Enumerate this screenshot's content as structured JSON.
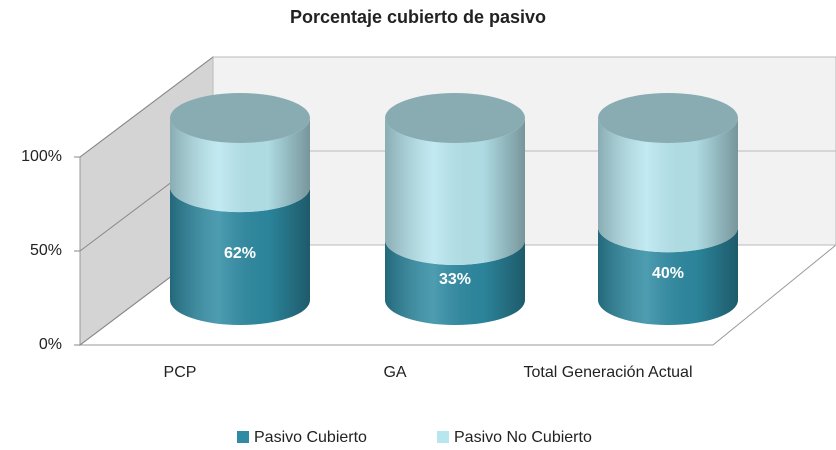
{
  "chart_data": {
    "type": "cylinder_stacked",
    "title": "Porcentaje cubierto de pasivo",
    "categories": [
      "PCP",
      "GA",
      "Total Generación Actual"
    ],
    "series": [
      {
        "name": "Pasivo Cubierto",
        "color": "#2e8ba3",
        "values": [
          62,
          33,
          40
        ],
        "value_labels": [
          "62%",
          "33%",
          "40%"
        ]
      },
      {
        "name": "Pasivo No Cubierto",
        "color": "#b7e6ef",
        "values": [
          38,
          67,
          60
        ]
      }
    ],
    "ylim": [
      0,
      100
    ],
    "yticks": [
      {
        "value": 0,
        "label": "0%"
      },
      {
        "value": 50,
        "label": "50%"
      },
      {
        "value": 100,
        "label": "100%"
      }
    ],
    "grid": true,
    "legend": "bottom"
  }
}
